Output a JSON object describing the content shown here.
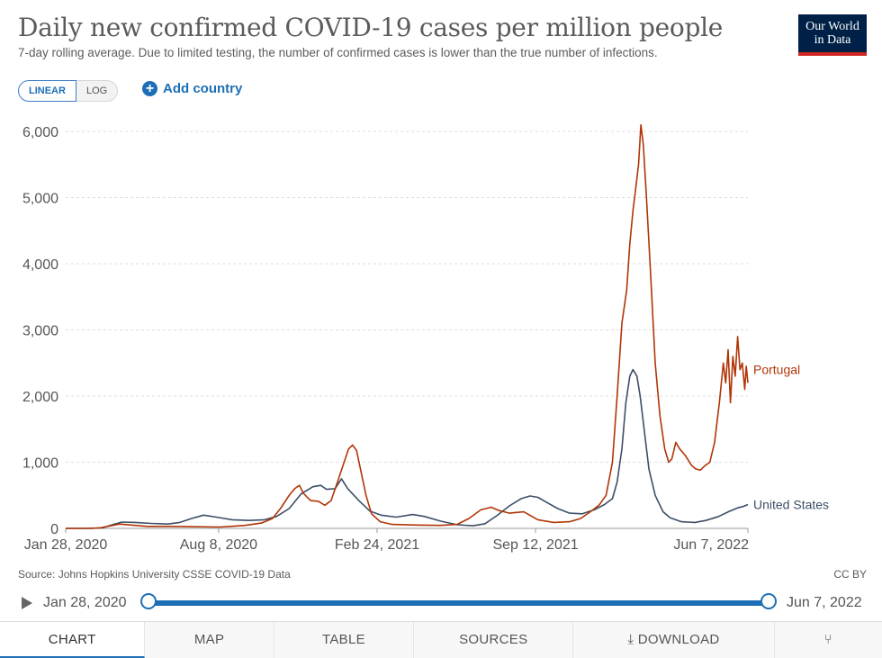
{
  "header": {
    "title": "Daily new confirmed COVID-19 cases per million people",
    "subtitle": "7-day rolling average. Due to limited testing, the number of confirmed cases is lower than the true number of infections.",
    "logo_line1": "Our World",
    "logo_line2": "in Data"
  },
  "controls": {
    "linear_label": "LINEAR",
    "log_label": "LOG",
    "add_country_label": "Add country"
  },
  "footer": {
    "source": "Source: Johns Hopkins University CSSE COVID-19 Data",
    "license": "CC BY"
  },
  "timeline": {
    "start_label": "Jan 28, 2020",
    "end_label": "Jun 7, 2022"
  },
  "tabs": {
    "chart": "CHART",
    "map": "MAP",
    "table": "TABLE",
    "sources": "SOURCES",
    "download": "DOWNLOAD"
  },
  "colors": {
    "portugal": "#b13507",
    "united_states": "#3c4e66",
    "accent": "#1d6fb5"
  },
  "chart_data": {
    "type": "line",
    "title": "Daily new confirmed COVID-19 cases per million people",
    "subtitle": "7-day rolling average. Due to limited testing, the number of confirmed cases is lower than the true number of infections.",
    "xlabel": "",
    "ylabel": "",
    "ylim": [
      0,
      6000
    ],
    "xlim": [
      "2020-01-28",
      "2022-06-07"
    ],
    "y_ticks": [
      0,
      1000,
      2000,
      3000,
      4000,
      5000,
      6000
    ],
    "y_tick_labels": [
      "0",
      "1,000",
      "2,000",
      "3,000",
      "4,000",
      "5,000",
      "6,000"
    ],
    "x_ticks": [
      "2020-01-28",
      "2020-08-08",
      "2021-02-24",
      "2021-09-12",
      "2022-06-07"
    ],
    "x_tick_labels": [
      "Jan 28, 2020",
      "Aug 8, 2020",
      "Feb 24, 2021",
      "Sep 12, 2021",
      "Jun 7, 2022"
    ],
    "grid": "horizontal dashed",
    "series": [
      {
        "name": "Portugal",
        "color": "#b13507",
        "points": [
          [
            "2020-01-28",
            0
          ],
          [
            "2020-02-20",
            0
          ],
          [
            "2020-03-10",
            5
          ],
          [
            "2020-03-25",
            40
          ],
          [
            "2020-04-05",
            65
          ],
          [
            "2020-04-20",
            50
          ],
          [
            "2020-05-10",
            30
          ],
          [
            "2020-06-10",
            30
          ],
          [
            "2020-07-10",
            25
          ],
          [
            "2020-08-10",
            20
          ],
          [
            "2020-09-10",
            45
          ],
          [
            "2020-10-01",
            80
          ],
          [
            "2020-10-15",
            150
          ],
          [
            "2020-10-25",
            300
          ],
          [
            "2020-11-05",
            500
          ],
          [
            "2020-11-12",
            600
          ],
          [
            "2020-11-18",
            650
          ],
          [
            "2020-11-23",
            530
          ],
          [
            "2020-12-02",
            420
          ],
          [
            "2020-12-12",
            410
          ],
          [
            "2020-12-20",
            350
          ],
          [
            "2020-12-28",
            420
          ],
          [
            "2021-01-05",
            700
          ],
          [
            "2021-01-12",
            950
          ],
          [
            "2021-01-19",
            1200
          ],
          [
            "2021-01-24",
            1260
          ],
          [
            "2021-01-29",
            1180
          ],
          [
            "2021-02-03",
            900
          ],
          [
            "2021-02-10",
            500
          ],
          [
            "2021-02-17",
            220
          ],
          [
            "2021-02-28",
            100
          ],
          [
            "2021-03-15",
            60
          ],
          [
            "2021-04-15",
            50
          ],
          [
            "2021-05-15",
            45
          ],
          [
            "2021-06-05",
            60
          ],
          [
            "2021-06-20",
            150
          ],
          [
            "2021-07-05",
            280
          ],
          [
            "2021-07-18",
            320
          ],
          [
            "2021-07-28",
            270
          ],
          [
            "2021-08-10",
            230
          ],
          [
            "2021-08-28",
            250
          ],
          [
            "2021-09-15",
            130
          ],
          [
            "2021-10-05",
            90
          ],
          [
            "2021-10-25",
            100
          ],
          [
            "2021-11-08",
            150
          ],
          [
            "2021-11-20",
            250
          ],
          [
            "2021-12-01",
            350
          ],
          [
            "2021-12-10",
            500
          ],
          [
            "2021-12-18",
            1000
          ],
          [
            "2021-12-24",
            2000
          ],
          [
            "2021-12-30",
            3100
          ],
          [
            "2022-01-05",
            3600
          ],
          [
            "2022-01-09",
            4300
          ],
          [
            "2022-01-13",
            4800
          ],
          [
            "2022-01-17",
            5200
          ],
          [
            "2022-01-20",
            5500
          ],
          [
            "2022-01-23",
            6100
          ],
          [
            "2022-01-26",
            5800
          ],
          [
            "2022-01-30",
            5000
          ],
          [
            "2022-02-04",
            3900
          ],
          [
            "2022-02-10",
            2500
          ],
          [
            "2022-02-16",
            1700
          ],
          [
            "2022-02-22",
            1200
          ],
          [
            "2022-02-27",
            1000
          ],
          [
            "2022-03-03",
            1050
          ],
          [
            "2022-03-08",
            1300
          ],
          [
            "2022-03-13",
            1200
          ],
          [
            "2022-03-20",
            1100
          ],
          [
            "2022-03-28",
            950
          ],
          [
            "2022-04-02",
            900
          ],
          [
            "2022-04-08",
            880
          ],
          [
            "2022-04-14",
            950
          ],
          [
            "2022-04-20",
            1000
          ],
          [
            "2022-04-26",
            1300
          ],
          [
            "2022-05-02",
            1900
          ],
          [
            "2022-05-07",
            2500
          ],
          [
            "2022-05-10",
            2200
          ],
          [
            "2022-05-13",
            2700
          ],
          [
            "2022-05-16",
            1900
          ],
          [
            "2022-05-19",
            2600
          ],
          [
            "2022-05-22",
            2300
          ],
          [
            "2022-05-25",
            2900
          ],
          [
            "2022-05-28",
            2400
          ],
          [
            "2022-05-31",
            2500
          ],
          [
            "2022-06-03",
            2100
          ],
          [
            "2022-06-05",
            2450
          ],
          [
            "2022-06-07",
            2200
          ]
        ]
      },
      {
        "name": "United States",
        "color": "#3c4e66",
        "points": [
          [
            "2020-01-28",
            0
          ],
          [
            "2020-03-01",
            0
          ],
          [
            "2020-03-15",
            10
          ],
          [
            "2020-03-28",
            60
          ],
          [
            "2020-04-08",
            95
          ],
          [
            "2020-04-25",
            90
          ],
          [
            "2020-05-15",
            75
          ],
          [
            "2020-06-05",
            65
          ],
          [
            "2020-06-20",
            90
          ],
          [
            "2020-07-05",
            150
          ],
          [
            "2020-07-20",
            200
          ],
          [
            "2020-08-05",
            170
          ],
          [
            "2020-08-25",
            130
          ],
          [
            "2020-09-15",
            120
          ],
          [
            "2020-10-05",
            130
          ],
          [
            "2020-10-20",
            180
          ],
          [
            "2020-11-05",
            300
          ],
          [
            "2020-11-20",
            520
          ],
          [
            "2020-12-05",
            630
          ],
          [
            "2020-12-15",
            650
          ],
          [
            "2020-12-22",
            590
          ],
          [
            "2021-01-02",
            600
          ],
          [
            "2021-01-10",
            750
          ],
          [
            "2021-01-18",
            600
          ],
          [
            "2021-02-01",
            420
          ],
          [
            "2021-02-15",
            260
          ],
          [
            "2021-03-01",
            200
          ],
          [
            "2021-03-20",
            170
          ],
          [
            "2021-04-10",
            210
          ],
          [
            "2021-04-25",
            180
          ],
          [
            "2021-05-15",
            110
          ],
          [
            "2021-06-05",
            55
          ],
          [
            "2021-06-25",
            40
          ],
          [
            "2021-07-10",
            70
          ],
          [
            "2021-07-25",
            190
          ],
          [
            "2021-08-10",
            340
          ],
          [
            "2021-08-25",
            450
          ],
          [
            "2021-09-05",
            490
          ],
          [
            "2021-09-15",
            470
          ],
          [
            "2021-09-25",
            400
          ],
          [
            "2021-10-10",
            300
          ],
          [
            "2021-10-25",
            230
          ],
          [
            "2021-11-10",
            220
          ],
          [
            "2021-11-25",
            280
          ],
          [
            "2021-12-08",
            360
          ],
          [
            "2021-12-18",
            450
          ],
          [
            "2021-12-24",
            700
          ],
          [
            "2021-12-30",
            1200
          ],
          [
            "2022-01-04",
            1900
          ],
          [
            "2022-01-09",
            2300
          ],
          [
            "2022-01-13",
            2400
          ],
          [
            "2022-01-18",
            2300
          ],
          [
            "2022-01-22",
            2000
          ],
          [
            "2022-01-27",
            1500
          ],
          [
            "2022-02-02",
            900
          ],
          [
            "2022-02-10",
            500
          ],
          [
            "2022-02-20",
            250
          ],
          [
            "2022-03-01",
            160
          ],
          [
            "2022-03-15",
            100
          ],
          [
            "2022-04-01",
            90
          ],
          [
            "2022-04-15",
            120
          ],
          [
            "2022-05-01",
            180
          ],
          [
            "2022-05-15",
            260
          ],
          [
            "2022-05-25",
            310
          ],
          [
            "2022-06-01",
            330
          ],
          [
            "2022-06-07",
            360
          ]
        ]
      }
    ],
    "line_labels": [
      {
        "series": "Portugal",
        "text": "Portugal"
      },
      {
        "series": "United States",
        "text": "United States"
      }
    ]
  }
}
